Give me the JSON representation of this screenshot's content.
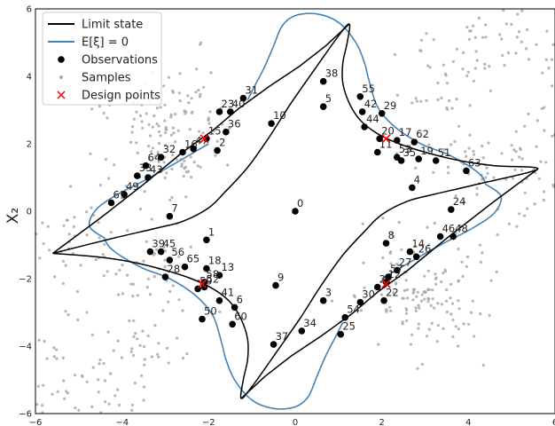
{
  "chart_data": {
    "type": "scatter",
    "xlabel": "",
    "ylabel": "X₂",
    "xlim": [
      -6,
      6
    ],
    "ylim": [
      -6,
      6
    ],
    "xticks": [
      -6,
      -4,
      -2,
      0,
      2,
      4,
      6
    ],
    "yticks": [
      -6,
      -4,
      -2,
      0,
      2,
      4,
      6
    ],
    "tick_labels_x": [
      "−6",
      "−4",
      "−2",
      "0",
      "2",
      "4",
      "6"
    ],
    "tick_labels_y": [
      "−6",
      "−4",
      "−2",
      "0",
      "2",
      "4",
      "6"
    ],
    "grid": false,
    "legend_position": "top-left",
    "colors": {
      "limit_state": "#000000",
      "mean_contour": "#4682b4",
      "observations": "#000000",
      "samples": "#a9a9a9",
      "design_points": "#ff0000"
    },
    "legend": [
      {
        "label": "Limit state",
        "kind": "line-black"
      },
      {
        "label": "E[ξ] = 0",
        "kind": "line-blue"
      },
      {
        "label": "Observations",
        "kind": "dot-black"
      },
      {
        "label": "Samples",
        "kind": "dot-grey"
      },
      {
        "label": "Design points",
        "kind": "cross-red"
      }
    ],
    "limit_state_curves": [
      [
        [
          -5.6,
          -1.25
        ],
        [
          -4.2,
          -0.8
        ],
        [
          -3.2,
          -0.5
        ],
        [
          -2.6,
          -0.3
        ],
        [
          -2.0,
          0.1
        ],
        [
          -1.6,
          0.6
        ],
        [
          -1.1,
          1.3
        ],
        [
          -0.6,
          2.2
        ],
        [
          -0.1,
          3.2
        ],
        [
          0.5,
          4.3
        ],
        [
          1.0,
          5.2
        ],
        [
          1.25,
          5.55
        ],
        [
          1.2,
          5.0
        ],
        [
          1.1,
          4.4
        ],
        [
          1.1,
          3.8
        ],
        [
          1.25,
          3.2
        ],
        [
          1.5,
          2.7
        ],
        [
          1.9,
          2.3
        ],
        [
          2.4,
          2.0
        ],
        [
          3.0,
          1.75
        ],
        [
          3.8,
          1.5
        ],
        [
          4.6,
          1.35
        ],
        [
          5.6,
          1.25
        ],
        [
          4.2,
          0.8
        ],
        [
          3.2,
          0.5
        ],
        [
          2.6,
          0.3
        ],
        [
          2.0,
          -0.1
        ],
        [
          1.6,
          -0.6
        ],
        [
          1.1,
          -1.3
        ],
        [
          0.6,
          -2.2
        ],
        [
          0.1,
          -3.2
        ],
        [
          -0.5,
          -4.3
        ],
        [
          -1.0,
          -5.2
        ],
        [
          -1.25,
          -5.55
        ],
        [
          -1.2,
          -5.0
        ],
        [
          -1.1,
          -4.4
        ],
        [
          -1.1,
          -3.8
        ],
        [
          -1.25,
          -3.2
        ],
        [
          -1.5,
          -2.7
        ],
        [
          -1.9,
          -2.3
        ],
        [
          -2.4,
          -2.0
        ],
        [
          -3.0,
          -1.75
        ],
        [
          -3.8,
          -1.5
        ],
        [
          -4.6,
          -1.35
        ],
        [
          -5.6,
          -1.25
        ]
      ],
      [
        [
          -5.6,
          -1.25
        ],
        [
          -4.5,
          -0.2
        ],
        [
          -3.5,
          0.8
        ],
        [
          -2.6,
          1.75
        ],
        [
          -1.9,
          2.4
        ],
        [
          -1.3,
          3.05
        ],
        [
          -0.6,
          3.7
        ],
        [
          0.1,
          4.3
        ],
        [
          0.7,
          4.9
        ],
        [
          1.25,
          5.55
        ]
      ],
      [
        [
          5.6,
          1.25
        ],
        [
          4.5,
          0.2
        ],
        [
          3.5,
          -0.8
        ],
        [
          2.6,
          -1.75
        ],
        [
          1.9,
          -2.4
        ],
        [
          1.3,
          -3.05
        ],
        [
          0.6,
          -3.7
        ],
        [
          -0.1,
          -4.3
        ],
        [
          -0.7,
          -4.9
        ],
        [
          -1.25,
          -5.55
        ]
      ]
    ],
    "mean_contours": [
      [
        [
          -1.1,
          3.3
        ],
        [
          -0.9,
          3.8
        ],
        [
          -0.7,
          4.3
        ],
        [
          -0.5,
          4.9
        ],
        [
          -0.3,
          5.5
        ],
        [
          0.0,
          5.8
        ],
        [
          0.5,
          5.85
        ],
        [
          1.0,
          5.6
        ],
        [
          1.4,
          5.0
        ],
        [
          1.6,
          4.4
        ],
        [
          1.7,
          3.9
        ],
        [
          1.9,
          3.1
        ],
        [
          2.3,
          2.5
        ],
        [
          2.9,
          2.0
        ],
        [
          3.5,
          1.7
        ],
        [
          4.0,
          1.35
        ],
        [
          4.3,
          1.05
        ],
        [
          4.4,
          0.8
        ]
      ],
      [
        [
          -4.4,
          -0.8
        ],
        [
          -4.3,
          -1.05
        ],
        [
          -4.0,
          -1.35
        ],
        [
          -3.5,
          -1.7
        ],
        [
          -2.9,
          -2.0
        ],
        [
          -2.3,
          -2.5
        ],
        [
          -1.9,
          -3.1
        ],
        [
          -1.7,
          -3.9
        ],
        [
          -1.6,
          -4.4
        ],
        [
          -1.4,
          -5.0
        ],
        [
          -1.0,
          -5.6
        ],
        [
          -0.5,
          -5.85
        ],
        [
          0.0,
          -5.8
        ],
        [
          0.3,
          -5.5
        ],
        [
          0.5,
          -4.9
        ],
        [
          0.7,
          -4.3
        ],
        [
          0.9,
          -3.8
        ],
        [
          1.1,
          -3.3
        ]
      ],
      [
        [
          -2.0,
          2.0
        ],
        [
          -2.8,
          1.4
        ],
        [
          -3.5,
          0.9
        ],
        [
          -4.1,
          0.5
        ],
        [
          -4.6,
          0.05
        ],
        [
          -4.75,
          -0.45
        ],
        [
          -4.4,
          -0.8
        ]
      ],
      [
        [
          2.0,
          -2.0
        ],
        [
          2.8,
          -1.4
        ],
        [
          3.5,
          -0.9
        ],
        [
          4.1,
          -0.5
        ],
        [
          4.6,
          -0.05
        ],
        [
          4.75,
          0.45
        ],
        [
          4.4,
          0.8
        ]
      ]
    ],
    "observations": [
      {
        "id": "0",
        "x": 0.0,
        "y": 0.0
      },
      {
        "id": "1",
        "x": -2.05,
        "y": -0.85
      },
      {
        "id": "2",
        "x": -1.8,
        "y": 1.8
      },
      {
        "id": "3",
        "x": 0.65,
        "y": -2.65
      },
      {
        "id": "4",
        "x": 2.7,
        "y": 0.7
      },
      {
        "id": "5",
        "x": 0.65,
        "y": 3.1
      },
      {
        "id": "6",
        "x": -1.4,
        "y": -2.85
      },
      {
        "id": "7",
        "x": -2.9,
        "y": -0.15
      },
      {
        "id": "8",
        "x": 2.1,
        "y": -0.95
      },
      {
        "id": "9",
        "x": -0.45,
        "y": -2.2
      },
      {
        "id": "10",
        "x": -0.55,
        "y": 2.6
      },
      {
        "id": "11",
        "x": 1.9,
        "y": 1.75
      },
      {
        "id": "12",
        "x": 2.1,
        "y": -2.1
      },
      {
        "id": "13",
        "x": -1.75,
        "y": -1.9
      },
      {
        "id": "14",
        "x": 2.65,
        "y": -1.2
      },
      {
        "id": "15",
        "x": -2.05,
        "y": 2.15
      },
      {
        "id": "16",
        "x": -2.6,
        "y": 1.75
      },
      {
        "id": "17",
        "x": 2.35,
        "y": 2.1
      },
      {
        "id": "18",
        "x": -2.05,
        "y": -1.7
      },
      {
        "id": "19",
        "x": 2.85,
        "y": 1.55
      },
      {
        "id": "20",
        "x": 1.95,
        "y": 2.15
      },
      {
        "id": "21",
        "x": 1.9,
        "y": -2.25
      },
      {
        "id": "22",
        "x": 2.05,
        "y": -2.65
      },
      {
        "id": "23",
        "x": -1.75,
        "y": 2.95
      },
      {
        "id": "24",
        "x": 3.6,
        "y": 0.05
      },
      {
        "id": "25",
        "x": 1.05,
        "y": -3.65
      },
      {
        "id": "26",
        "x": 2.8,
        "y": -1.35
      },
      {
        "id": "27",
        "x": 2.35,
        "y": -1.75
      },
      {
        "id": "28",
        "x": -3.0,
        "y": -1.95
      },
      {
        "id": "29",
        "x": 2.0,
        "y": 2.9
      },
      {
        "id": "30",
        "x": 1.5,
        "y": -2.7
      },
      {
        "id": "31",
        "x": -1.2,
        "y": 3.35
      },
      {
        "id": "32",
        "x": -3.1,
        "y": 1.6
      },
      {
        "id": "33",
        "x": -3.65,
        "y": 1.05
      },
      {
        "id": "34",
        "x": 0.15,
        "y": -3.55
      },
      {
        "id": "35",
        "x": 2.45,
        "y": 1.5
      },
      {
        "id": "36",
        "x": -1.6,
        "y": 2.35
      },
      {
        "id": "37",
        "x": -0.5,
        "y": -3.95
      },
      {
        "id": "38",
        "x": 0.65,
        "y": 3.85
      },
      {
        "id": "39",
        "x": -3.35,
        "y": -1.2
      },
      {
        "id": "40",
        "x": -1.5,
        "y": 2.95
      },
      {
        "id": "41",
        "x": -1.75,
        "y": -2.65
      },
      {
        "id": "42",
        "x": 1.55,
        "y": 2.95
      },
      {
        "id": "43",
        "x": -3.4,
        "y": 1.0
      },
      {
        "id": "44",
        "x": 1.6,
        "y": 2.5
      },
      {
        "id": "45",
        "x": -3.1,
        "y": -1.2
      },
      {
        "id": "46",
        "x": 3.35,
        "y": -0.75
      },
      {
        "id": "47",
        "x": -2.35,
        "y": 1.85
      },
      {
        "id": "48",
        "x": 3.65,
        "y": -0.75
      },
      {
        "id": "49",
        "x": -3.95,
        "y": 0.5
      },
      {
        "id": "50",
        "x": -2.15,
        "y": -3.2
      },
      {
        "id": "51",
        "x": 3.25,
        "y": 1.5
      },
      {
        "id": "52",
        "x": -2.1,
        "y": -2.25
      },
      {
        "id": "53",
        "x": 2.35,
        "y": 1.6
      },
      {
        "id": "54",
        "x": 1.15,
        "y": -3.15
      },
      {
        "id": "55",
        "x": 1.5,
        "y": 3.4
      },
      {
        "id": "56",
        "x": -2.9,
        "y": -1.45
      },
      {
        "id": "57",
        "x": 2.15,
        "y": -1.95
      },
      {
        "id": "58",
        "x": -2.1,
        "y": -2.1
      },
      {
        "id": "59",
        "x": -2.25,
        "y": -2.3
      },
      {
        "id": "60",
        "x": -1.45,
        "y": -3.35
      },
      {
        "id": "61",
        "x": -4.25,
        "y": 0.25
      },
      {
        "id": "62",
        "x": 2.75,
        "y": 2.05
      },
      {
        "id": "63",
        "x": 3.95,
        "y": 1.2
      },
      {
        "id": "64",
        "x": -3.45,
        "y": 1.35
      },
      {
        "id": "65",
        "x": -2.55,
        "y": -1.65
      }
    ],
    "design_points": [
      {
        "x": -2.1,
        "y": 2.15
      },
      {
        "x": 2.1,
        "y": 2.15
      },
      {
        "x": -2.15,
        "y": -2.15
      },
      {
        "x": 2.1,
        "y": -2.15
      }
    ],
    "samples_description": "about 700 grey Monte Carlo sample points concentrated in four crescent-shaped clusters around the upper-right, lower-left, upper-left and lower-right of the limit state"
  }
}
